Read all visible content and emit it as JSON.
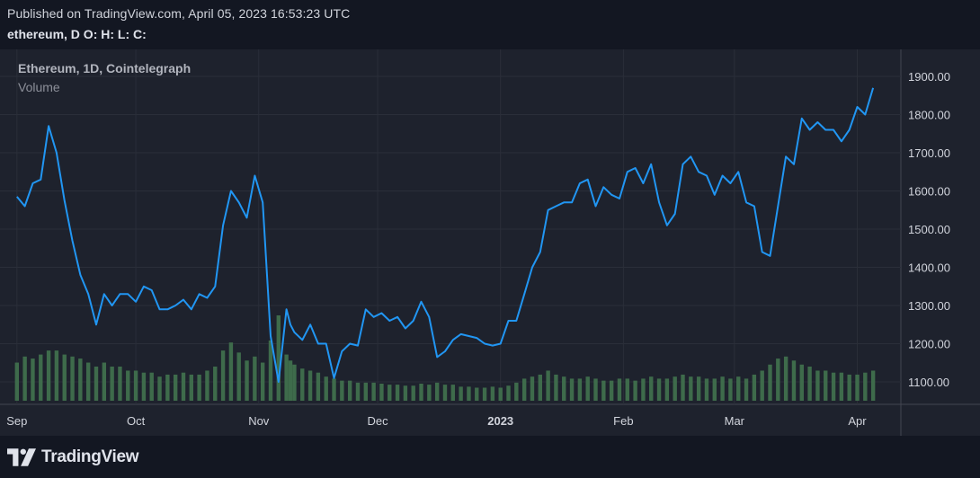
{
  "header": {
    "published": "Published on TradingView.com, April 05, 2023 16:53:23 UTC",
    "symbol_line": "ethereum, D O: H: L: C:"
  },
  "legend": {
    "title": "Ethereum, 1D, Cointelegraph",
    "volume": "Volume"
  },
  "footer": {
    "brand": "TradingView"
  },
  "colors": {
    "background": "#131722",
    "pane": "#1e222d",
    "grid": "#2a2e39",
    "price_line": "#2196f3",
    "volume_bar": "#3e6b4b"
  },
  "chart_data": {
    "type": "line",
    "title": "Ethereum, 1D, Cointelegraph",
    "y_ticks": [
      "1900.00",
      "1800.00",
      "1700.00",
      "1600.00",
      "1500.00",
      "1400.00",
      "1300.00",
      "1200.00",
      "1100.00"
    ],
    "x_ticks": [
      "Sep",
      "Oct",
      "Nov",
      "Dec",
      "2023",
      "Feb",
      "Mar",
      "Apr"
    ],
    "ylim": [
      1030,
      1950
    ],
    "grid": true,
    "series": [
      {
        "name": "ethereum",
        "x": [
          "2022-09-01",
          "2022-09-03",
          "2022-09-05",
          "2022-09-07",
          "2022-09-09",
          "2022-09-11",
          "2022-09-13",
          "2022-09-15",
          "2022-09-17",
          "2022-09-19",
          "2022-09-21",
          "2022-09-23",
          "2022-09-25",
          "2022-09-27",
          "2022-09-29",
          "2022-10-01",
          "2022-10-03",
          "2022-10-05",
          "2022-10-07",
          "2022-10-09",
          "2022-10-11",
          "2022-10-13",
          "2022-10-15",
          "2022-10-17",
          "2022-10-19",
          "2022-10-21",
          "2022-10-23",
          "2022-10-25",
          "2022-10-27",
          "2022-10-29",
          "2022-10-31",
          "2022-11-02",
          "2022-11-04",
          "2022-11-06",
          "2022-11-08",
          "2022-11-09",
          "2022-11-10",
          "2022-11-12",
          "2022-11-14",
          "2022-11-16",
          "2022-11-18",
          "2022-11-20",
          "2022-11-22",
          "2022-11-24",
          "2022-11-26",
          "2022-11-28",
          "2022-11-30",
          "2022-12-02",
          "2022-12-04",
          "2022-12-06",
          "2022-12-08",
          "2022-12-10",
          "2022-12-12",
          "2022-12-14",
          "2022-12-16",
          "2022-12-18",
          "2022-12-20",
          "2022-12-22",
          "2022-12-24",
          "2022-12-26",
          "2022-12-28",
          "2022-12-30",
          "2023-01-01",
          "2023-01-03",
          "2023-01-05",
          "2023-01-07",
          "2023-01-09",
          "2023-01-11",
          "2023-01-13",
          "2023-01-15",
          "2023-01-17",
          "2023-01-19",
          "2023-01-21",
          "2023-01-23",
          "2023-01-25",
          "2023-01-27",
          "2023-01-29",
          "2023-01-31",
          "2023-02-02",
          "2023-02-04",
          "2023-02-06",
          "2023-02-08",
          "2023-02-10",
          "2023-02-12",
          "2023-02-14",
          "2023-02-16",
          "2023-02-18",
          "2023-02-20",
          "2023-02-22",
          "2023-02-24",
          "2023-02-26",
          "2023-02-28",
          "2023-03-02",
          "2023-03-04",
          "2023-03-06",
          "2023-03-08",
          "2023-03-10",
          "2023-03-12",
          "2023-03-14",
          "2023-03-16",
          "2023-03-18",
          "2023-03-20",
          "2023-03-22",
          "2023-03-24",
          "2023-03-26",
          "2023-03-28",
          "2023-03-30",
          "2023-04-01",
          "2023-04-03",
          "2023-04-05"
        ],
        "values": [
          1585,
          1560,
          1620,
          1630,
          1770,
          1700,
          1575,
          1470,
          1380,
          1330,
          1250,
          1330,
          1300,
          1330,
          1330,
          1310,
          1350,
          1340,
          1290,
          1290,
          1300,
          1315,
          1290,
          1330,
          1320,
          1350,
          1510,
          1600,
          1570,
          1530,
          1640,
          1570,
          1220,
          1100,
          1290,
          1250,
          1230,
          1210,
          1250,
          1200,
          1200,
          1110,
          1180,
          1200,
          1195,
          1290,
          1270,
          1280,
          1260,
          1270,
          1240,
          1260,
          1310,
          1270,
          1165,
          1180,
          1210,
          1225,
          1220,
          1215,
          1200,
          1195,
          1200,
          1260,
          1260,
          1330,
          1400,
          1440,
          1550,
          1560,
          1570,
          1570,
          1620,
          1630,
          1560,
          1610,
          1590,
          1580,
          1650,
          1660,
          1620,
          1670,
          1570,
          1510,
          1540,
          1670,
          1690,
          1650,
          1640,
          1590,
          1640,
          1620,
          1650,
          1570,
          1560,
          1440,
          1430,
          1560,
          1690,
          1670,
          1790,
          1760,
          1780,
          1760,
          1760,
          1730,
          1760,
          1820,
          1800,
          1870
        ]
      }
    ],
    "volume_values": [
      38,
      44,
      42,
      46,
      50,
      50,
      46,
      44,
      42,
      38,
      34,
      38,
      34,
      34,
      30,
      30,
      28,
      28,
      24,
      26,
      26,
      28,
      26,
      26,
      30,
      34,
      50,
      58,
      48,
      40,
      44,
      38,
      60,
      85,
      46,
      40,
      36,
      32,
      30,
      28,
      24,
      22,
      20,
      20,
      18,
      18,
      18,
      17,
      16,
      16,
      15,
      15,
      17,
      16,
      18,
      16,
      16,
      14,
      14,
      13,
      13,
      14,
      13,
      15,
      18,
      22,
      24,
      26,
      30,
      26,
      24,
      22,
      22,
      24,
      22,
      20,
      20,
      22,
      22,
      20,
      22,
      24,
      22,
      22,
      24,
      26,
      24,
      24,
      22,
      22,
      24,
      22,
      24,
      22,
      26,
      30,
      36,
      42,
      44,
      40,
      36,
      34,
      30,
      30,
      28,
      28,
      26,
      26,
      28,
      30
    ]
  }
}
